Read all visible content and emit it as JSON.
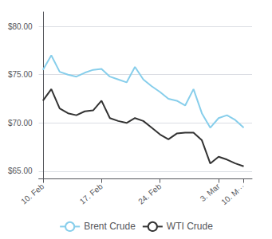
{
  "chart_data": {
    "type": "line",
    "x": [
      0,
      1,
      2,
      3,
      4,
      5,
      6,
      7,
      8,
      9,
      10,
      11,
      12,
      13,
      14,
      15,
      16,
      17,
      18,
      19,
      20,
      21,
      22,
      23,
      24
    ],
    "series": [
      {
        "name": "Brent Crude",
        "color": "#87ceeb",
        "values": [
          75.5,
          77.0,
          75.3,
          75.0,
          74.8,
          75.2,
          75.5,
          75.6,
          74.8,
          74.5,
          74.2,
          75.8,
          74.5,
          73.8,
          73.2,
          72.5,
          72.3,
          71.8,
          73.5,
          71.0,
          69.5,
          70.5,
          70.8,
          70.3,
          69.5
        ]
      },
      {
        "name": "WTI Crude",
        "color": "#333333",
        "values": [
          72.3,
          73.5,
          71.5,
          71.0,
          70.8,
          71.2,
          71.3,
          72.3,
          70.5,
          70.2,
          70.0,
          70.5,
          70.2,
          69.5,
          68.8,
          68.3,
          68.9,
          69.0,
          69.0,
          68.2,
          65.8,
          66.5,
          66.2,
          65.8,
          65.5
        ]
      }
    ],
    "xlim": [
      -0.5,
      25.0
    ],
    "xticks": [
      {
        "value": 0,
        "label": "10. Feb"
      },
      {
        "value": 7,
        "label": "17. Feb"
      },
      {
        "value": 14,
        "label": "24. Feb"
      },
      {
        "value": 21,
        "label": "3. Mar"
      },
      {
        "value": 24,
        "label": "10. M···"
      }
    ],
    "ylim": [
      64.2,
      81.5
    ],
    "yticks": [
      {
        "value": 65.0,
        "label": "$65.00"
      },
      {
        "value": 70.0,
        "label": "$70.00"
      },
      {
        "value": 75.0,
        "label": "$75.00"
      },
      {
        "value": 80.0,
        "label": "$80.00"
      }
    ],
    "grid": true,
    "legend": "bottom"
  }
}
